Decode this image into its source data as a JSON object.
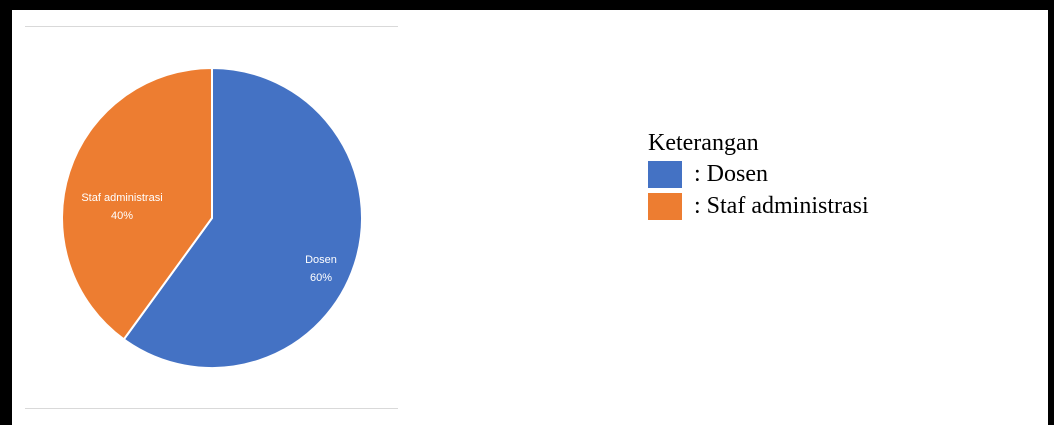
{
  "chart_data": {
    "type": "pie",
    "slices": [
      {
        "name": "Dosen",
        "value": 60,
        "label": "60%",
        "color": "#4472c4"
      },
      {
        "name": "Staf administrasi",
        "value": 40,
        "label": "40%",
        "color": "#ed7d31"
      }
    ],
    "start": "12 o'clock",
    "direction": "clockwise"
  },
  "legend": {
    "title": "Keterangan",
    "items": [
      {
        "label": ": Dosen",
        "color": "#4472c4"
      },
      {
        "label": ": Staf administrasi",
        "color": "#ed7d31"
      }
    ]
  }
}
